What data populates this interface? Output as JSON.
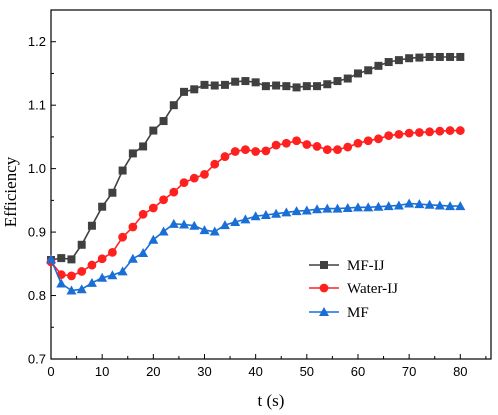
{
  "chart_data": {
    "type": "line",
    "title": "",
    "xlabel": "t (s)",
    "ylabel": "Efficiency",
    "xlim": [
      0,
      86
    ],
    "ylim": [
      0.7,
      1.25
    ],
    "xticks": [
      "0",
      "10",
      "20",
      "30",
      "40",
      "50",
      "60",
      "70",
      "80"
    ],
    "xtick_values": [
      0,
      10,
      20,
      30,
      40,
      50,
      60,
      70,
      80
    ],
    "yticks": [
      "0.7",
      "0.8",
      "0.9",
      "1.0",
      "1.1",
      "1.2"
    ],
    "ytick_values": [
      0.7,
      0.8,
      0.9,
      1.0,
      1.1,
      1.2
    ],
    "grid": false,
    "legend_position": "lower-right",
    "series": [
      {
        "name": "MF-IJ",
        "color": "#404040",
        "marker": "square",
        "x": [
          0,
          2,
          4,
          6,
          8,
          10,
          12,
          14,
          16,
          18,
          20,
          22,
          24,
          26,
          28,
          30,
          32,
          34,
          36,
          38,
          40,
          42,
          44,
          46,
          48,
          50,
          52,
          54,
          56,
          58,
          60,
          62,
          64,
          66,
          68,
          70,
          72,
          74,
          76,
          78,
          80
        ],
        "y": [
          0.856,
          0.859,
          0.857,
          0.88,
          0.91,
          0.94,
          0.962,
          0.997,
          1.024,
          1.035,
          1.06,
          1.075,
          1.1,
          1.121,
          1.125,
          1.132,
          1.131,
          1.132,
          1.137,
          1.138,
          1.136,
          1.13,
          1.131,
          1.13,
          1.128,
          1.13,
          1.13,
          1.133,
          1.138,
          1.142,
          1.15,
          1.155,
          1.162,
          1.168,
          1.171,
          1.174,
          1.175,
          1.176,
          1.176,
          1.176,
          1.176
        ]
      },
      {
        "name": "Water-IJ",
        "color": "#ff2020",
        "marker": "circle",
        "x": [
          0,
          2,
          4,
          6,
          8,
          10,
          12,
          14,
          16,
          18,
          20,
          22,
          24,
          26,
          28,
          30,
          32,
          34,
          36,
          38,
          40,
          42,
          44,
          46,
          48,
          50,
          52,
          54,
          56,
          58,
          60,
          62,
          64,
          66,
          68,
          70,
          72,
          74,
          76,
          78,
          80
        ],
        "y": [
          0.853,
          0.833,
          0.831,
          0.838,
          0.848,
          0.858,
          0.868,
          0.892,
          0.908,
          0.928,
          0.938,
          0.951,
          0.963,
          0.978,
          0.985,
          0.991,
          1.007,
          1.019,
          1.027,
          1.03,
          1.027,
          1.028,
          1.037,
          1.04,
          1.044,
          1.038,
          1.035,
          1.03,
          1.03,
          1.034,
          1.04,
          1.044,
          1.047,
          1.052,
          1.054,
          1.056,
          1.057,
          1.058,
          1.059,
          1.06,
          1.06
        ]
      },
      {
        "name": "MF",
        "color": "#1a6fd6",
        "marker": "triangle",
        "x": [
          0,
          2,
          4,
          6,
          8,
          10,
          12,
          14,
          16,
          18,
          20,
          22,
          24,
          26,
          28,
          30,
          32,
          34,
          36,
          38,
          40,
          42,
          44,
          46,
          48,
          50,
          52,
          54,
          56,
          58,
          60,
          62,
          64,
          66,
          68,
          70,
          72,
          74,
          76,
          78,
          80
        ],
        "y": [
          0.857,
          0.819,
          0.808,
          0.81,
          0.82,
          0.828,
          0.832,
          0.838,
          0.858,
          0.867,
          0.888,
          0.901,
          0.913,
          0.912,
          0.91,
          0.903,
          0.901,
          0.911,
          0.916,
          0.92,
          0.925,
          0.927,
          0.929,
          0.931,
          0.933,
          0.934,
          0.936,
          0.937,
          0.937,
          0.938,
          0.939,
          0.939,
          0.94,
          0.941,
          0.942,
          0.945,
          0.944,
          0.943,
          0.942,
          0.941,
          0.941
        ]
      }
    ]
  }
}
